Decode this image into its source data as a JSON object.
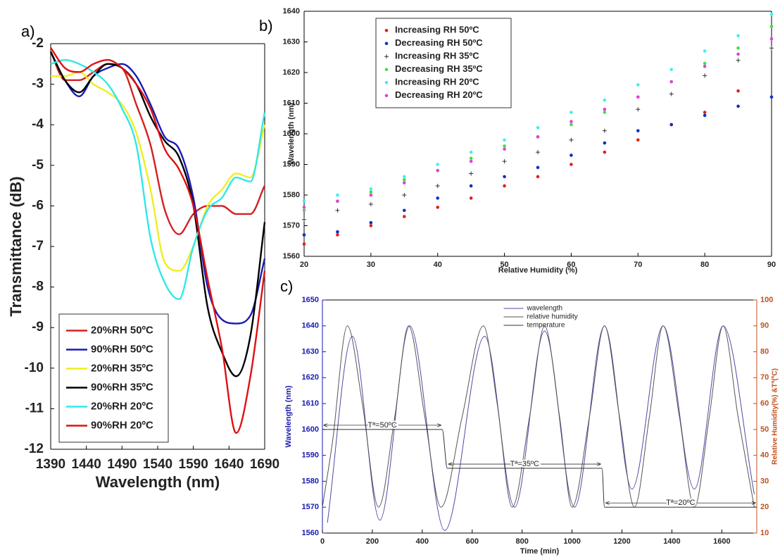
{
  "chart_data": [
    {
      "type": "line",
      "panel_label": "a)",
      "x_label": "Wavelength (nm)",
      "y_label": "Transmittance (dB)",
      "x": [
        1390,
        1410,
        1430,
        1450,
        1470,
        1490,
        1510,
        1530,
        1550,
        1570,
        1590,
        1610,
        1630,
        1650,
        1670,
        1690
      ],
      "xlim": [
        1390,
        1690
      ],
      "ylim": [
        -12,
        -2
      ],
      "xticks": [
        1390,
        1440,
        1490,
        1540,
        1590,
        1640,
        1690
      ],
      "yticks": [
        -2,
        -3,
        -4,
        -5,
        -6,
        -7,
        -8,
        -9,
        -10,
        -11,
        -12
      ],
      "grid": false,
      "legend": "lower left",
      "series": [
        {
          "name": "20%RH 50ºC",
          "color": "#d42020",
          "values": [
            -2.2,
            -2.9,
            -2.9,
            -2.7,
            -2.5,
            -2.6,
            -3.5,
            -4.5,
            -6.1,
            -6.7,
            -6.2,
            -6.0,
            -6.0,
            -6.2,
            -6.2,
            -5.5
          ]
        },
        {
          "name": "90%RH 50ºC",
          "color": "#1a1ab8",
          "values": [
            -2.2,
            -2.9,
            -3.3,
            -2.8,
            -2.6,
            -2.5,
            -2.8,
            -3.5,
            -4.3,
            -4.6,
            -5.8,
            -8.0,
            -8.8,
            -8.9,
            -8.7,
            -7.3
          ]
        },
        {
          "name": "20%RH 35ºC",
          "color": "#f0ee20",
          "values": [
            -2.8,
            -2.8,
            -2.7,
            -3.0,
            -3.2,
            -3.5,
            -4.2,
            -5.6,
            -7.4,
            -7.6,
            -7.0,
            -6.0,
            -5.6,
            -5.2,
            -5.3,
            -4.0
          ]
        },
        {
          "name": "90%RH 35ºC",
          "color": "#000000",
          "values": [
            -2.2,
            -2.9,
            -3.2,
            -2.8,
            -2.5,
            -2.6,
            -3.0,
            -3.8,
            -4.4,
            -4.8,
            -6.0,
            -8.5,
            -9.6,
            -10.2,
            -9.2,
            -6.4
          ]
        },
        {
          "name": "20%RH 20ºC",
          "color": "#30e8e8",
          "values": [
            -2.5,
            -2.4,
            -2.5,
            -2.7,
            -3.0,
            -3.6,
            -4.5,
            -6.8,
            -7.9,
            -8.3,
            -7.0,
            -6.1,
            -5.8,
            -5.3,
            -5.4,
            -3.7
          ]
        },
        {
          "name": "90%RH 20ºC",
          "color": "#e01010",
          "values": [
            -2.1,
            -2.6,
            -2.7,
            -2.5,
            -2.4,
            -2.6,
            -3.0,
            -3.6,
            -4.6,
            -5.1,
            -6.0,
            -7.8,
            -9.5,
            -11.6,
            -10.2,
            -7.6
          ]
        }
      ]
    },
    {
      "type": "scatter",
      "panel_label": "b)",
      "x_label": "Relative Humidity (%)",
      "y_label": "Wavelength (nm)",
      "xlim": [
        20,
        90
      ],
      "ylim": [
        1560,
        1640
      ],
      "xticks": [
        20,
        30,
        40,
        50,
        60,
        70,
        80,
        90
      ],
      "yticks": [
        1560,
        1570,
        1580,
        1590,
        1600,
        1610,
        1620,
        1630,
        1640
      ],
      "grid": false,
      "legend": "upper left",
      "series": [
        {
          "name": "Increasing RH 50ºC",
          "color": "#e02020",
          "marker": "dot",
          "x": [
            20,
            25,
            30,
            35,
            40,
            45,
            50,
            55,
            60,
            65,
            70,
            75,
            80,
            85
          ],
          "values": [
            1564,
            1567,
            1570,
            1573,
            1576,
            1579,
            1583,
            1586,
            1590,
            1594,
            1598,
            1603,
            1607,
            1614
          ]
        },
        {
          "name": "Decreasing RH 50ºC",
          "color": "#1030c0",
          "marker": "dot",
          "x": [
            20,
            25,
            30,
            35,
            40,
            45,
            50,
            55,
            60,
            65,
            70,
            75,
            80,
            85,
            90
          ],
          "values": [
            1567,
            1568,
            1571,
            1575,
            1579,
            1583,
            1586,
            1589,
            1593,
            1597,
            1601,
            1603,
            1606,
            1609,
            1612
          ]
        },
        {
          "name": "Increasing RH 35ºC",
          "color": "#333333",
          "marker": "plus",
          "x": [
            20,
            25,
            30,
            35,
            40,
            45,
            50,
            55,
            60,
            65,
            70,
            75,
            80,
            85,
            90
          ],
          "values": [
            1572,
            1575,
            1577,
            1580,
            1583,
            1587,
            1591,
            1594,
            1598,
            1601,
            1608,
            1613,
            1619,
            1624,
            1628
          ]
        },
        {
          "name": "Decreasing RH 35ºC",
          "color": "#40e040",
          "marker": "dot",
          "x": [
            20,
            25,
            30,
            35,
            40,
            45,
            50,
            55,
            60,
            65,
            70,
            75,
            80,
            85,
            90
          ],
          "values": [
            1575,
            1578,
            1581,
            1585,
            1588,
            1592,
            1596,
            1599,
            1603,
            1607,
            1612,
            1617,
            1623,
            1628,
            1635
          ]
        },
        {
          "name": "Increasing RH 20ºC",
          "color": "#40f0f0",
          "marker": "dot",
          "x": [
            20,
            25,
            30,
            35,
            40,
            45,
            50,
            55,
            60,
            65,
            70,
            75,
            80,
            85,
            90
          ],
          "values": [
            1578,
            1580,
            1582,
            1586,
            1590,
            1594,
            1598,
            1602,
            1607,
            1611,
            1616,
            1621,
            1627,
            1632,
            1639
          ]
        },
        {
          "name": "Decreasing RH 20ºC",
          "color": "#e040e0",
          "marker": "dot",
          "x": [
            20,
            25,
            30,
            35,
            40,
            45,
            50,
            55,
            60,
            65,
            70,
            75,
            80,
            85,
            90
          ],
          "values": [
            1576,
            1578,
            1580,
            1584,
            1588,
            1591,
            1595,
            1599,
            1604,
            1608,
            1612,
            1617,
            1622,
            1626,
            1631
          ]
        }
      ]
    },
    {
      "type": "line",
      "panel_label": "c)",
      "x_label": "Time (min)",
      "y_label": "Wavelength (nm)",
      "y2_label": "Relative Humidity(%) &Tª(ºC)",
      "y_label_color": "#1a1ab0",
      "y2_label_color": "#c0501c",
      "xlim": [
        0,
        1740
      ],
      "ylim": [
        1560,
        1650
      ],
      "y2lim": [
        10,
        100
      ],
      "xticks": [
        0,
        200,
        400,
        600,
        800,
        1000,
        1200,
        1400,
        1600
      ],
      "yticks": [
        1560,
        1570,
        1580,
        1590,
        1600,
        1610,
        1620,
        1630,
        1640,
        1650
      ],
      "y2ticks": [
        10,
        20,
        30,
        40,
        50,
        60,
        70,
        80,
        90,
        100
      ],
      "grid": false,
      "legend": "upper center",
      "annotations": [
        "Tª=50ºC",
        "Tª=35ºC",
        "Tª=20ºC"
      ],
      "series": [
        {
          "name": "wavelength",
          "color": "#4a4aa8",
          "x": [
            20,
            120,
            230,
            350,
            490,
            650,
            770,
            890,
            1010,
            1130,
            1240,
            1365,
            1490,
            1605,
            1730
          ],
          "values": [
            1564,
            1636,
            1565,
            1640,
            1561,
            1636,
            1570,
            1638,
            1570,
            1640,
            1577,
            1640,
            1577,
            1640,
            1575
          ]
        },
        {
          "name": "relative humidity",
          "color": "#555555",
          "axis": "y2",
          "x": [
            0,
            40,
            100,
            160,
            225,
            290,
            345,
            410,
            475,
            560,
            645,
            700,
            760,
            830,
            890,
            950,
            1000,
            1070,
            1130,
            1190,
            1250,
            1310,
            1365,
            1430,
            1490,
            1550,
            1605,
            1665,
            1730
          ],
          "values": [
            20,
            45,
            90,
            60,
            20,
            55,
            90,
            55,
            20,
            55,
            90,
            60,
            20,
            55,
            90,
            55,
            20,
            55,
            90,
            55,
            20,
            55,
            90,
            55,
            20,
            55,
            90,
            55,
            20
          ]
        },
        {
          "name": "temperature",
          "color": "#333333",
          "axis": "y2",
          "x": [
            0,
            480,
            500,
            1120,
            1130,
            1740
          ],
          "values": [
            50,
            50,
            35,
            35,
            20,
            20
          ]
        }
      ]
    }
  ]
}
